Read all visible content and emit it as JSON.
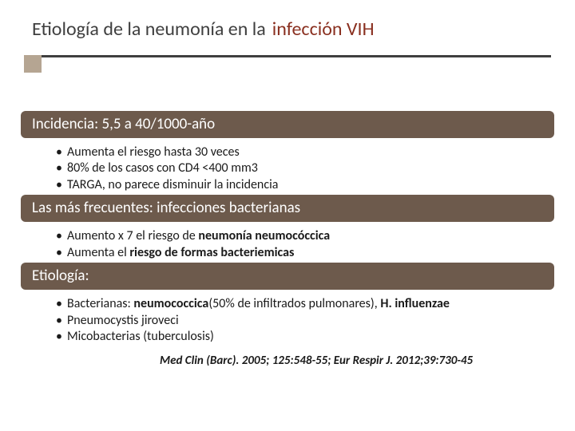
{
  "title": {
    "a": "Etiología de la neumonía en la",
    "b": "infección VIH"
  },
  "colors": {
    "band_bg": "#6d5a4c",
    "title_accent": "#8a3020",
    "square": "#b5a592",
    "underline": "#3f3f3f"
  },
  "sections": [
    {
      "header": "Incidencia: 5,5 a 40/1000-año",
      "bullets": [
        {
          "plain": "Aumenta el riesgo hasta 30 veces"
        },
        {
          "plain": "80% de los casos con CD4 <400 mm3"
        },
        {
          "plain": "TARGA, no parece disminuir la incidencia"
        }
      ]
    },
    {
      "header": "Las más frecuentes: infecciones bacterianas",
      "bullets": [
        {
          "pre": "Aumento x 7 el riesgo de ",
          "bold": "neumonía neumocóccica",
          "post": ""
        },
        {
          "pre": "Aumenta el ",
          "bold": "riesgo de formas bacteriemicas",
          "post": ""
        }
      ]
    },
    {
      "header": "Etiología:",
      "bullets": [
        {
          "pre": "Bacterianas: ",
          "bold": "neumococcica",
          "mid": "(50% de infiltrados pulmonares), ",
          "bold2": "H. influenzae",
          "post": ""
        },
        {
          "plain": "Pneumocystis jiroveci"
        },
        {
          "plain": "Micobacterias (tuberculosis)"
        }
      ]
    }
  ],
  "citation": "Med Clin (Barc). 2005; 125:548-55; Eur Respir J. 2012;39:730-45"
}
